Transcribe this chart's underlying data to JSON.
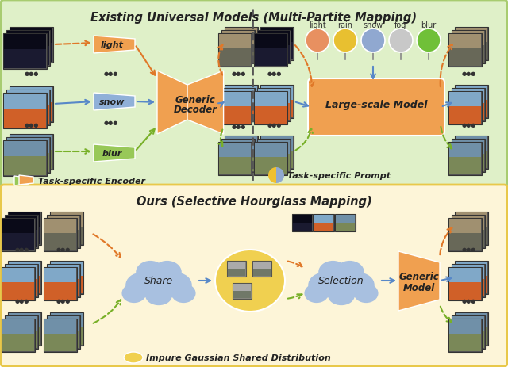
{
  "fig_width": 6.4,
  "fig_height": 4.64,
  "dpi": 100,
  "top_bg": "#dff0c8",
  "bottom_bg": "#fdf5d8",
  "top_border": "#a8cc70",
  "bottom_border": "#e8c84a",
  "orange": "#f0a050",
  "blue": "#90b0d8",
  "green": "#98c858",
  "yellow": "#f5d030",
  "light_col": "#e89060",
  "rain_col": "#e8c030",
  "snow_col": "#90a8d0",
  "fog_col": "#c8c8c8",
  "blur_col": "#70c038",
  "arr_orange": "#e07828",
  "arr_green": "#78b028",
  "arr_blue": "#5888c8",
  "cloud_col": "#a8c0e0",
  "gauss_col": "#f0d050",
  "title_top": "Existing Universal Models (Multi-Partite Mapping)",
  "title_bot": "Ours (Selective Hourglass Mapping)",
  "legend_enc": "Task-specific Encoder",
  "legend_pmt": "Task-specific Prompt",
  "legend_gss": "Impure Gaussian Shared Distribution"
}
